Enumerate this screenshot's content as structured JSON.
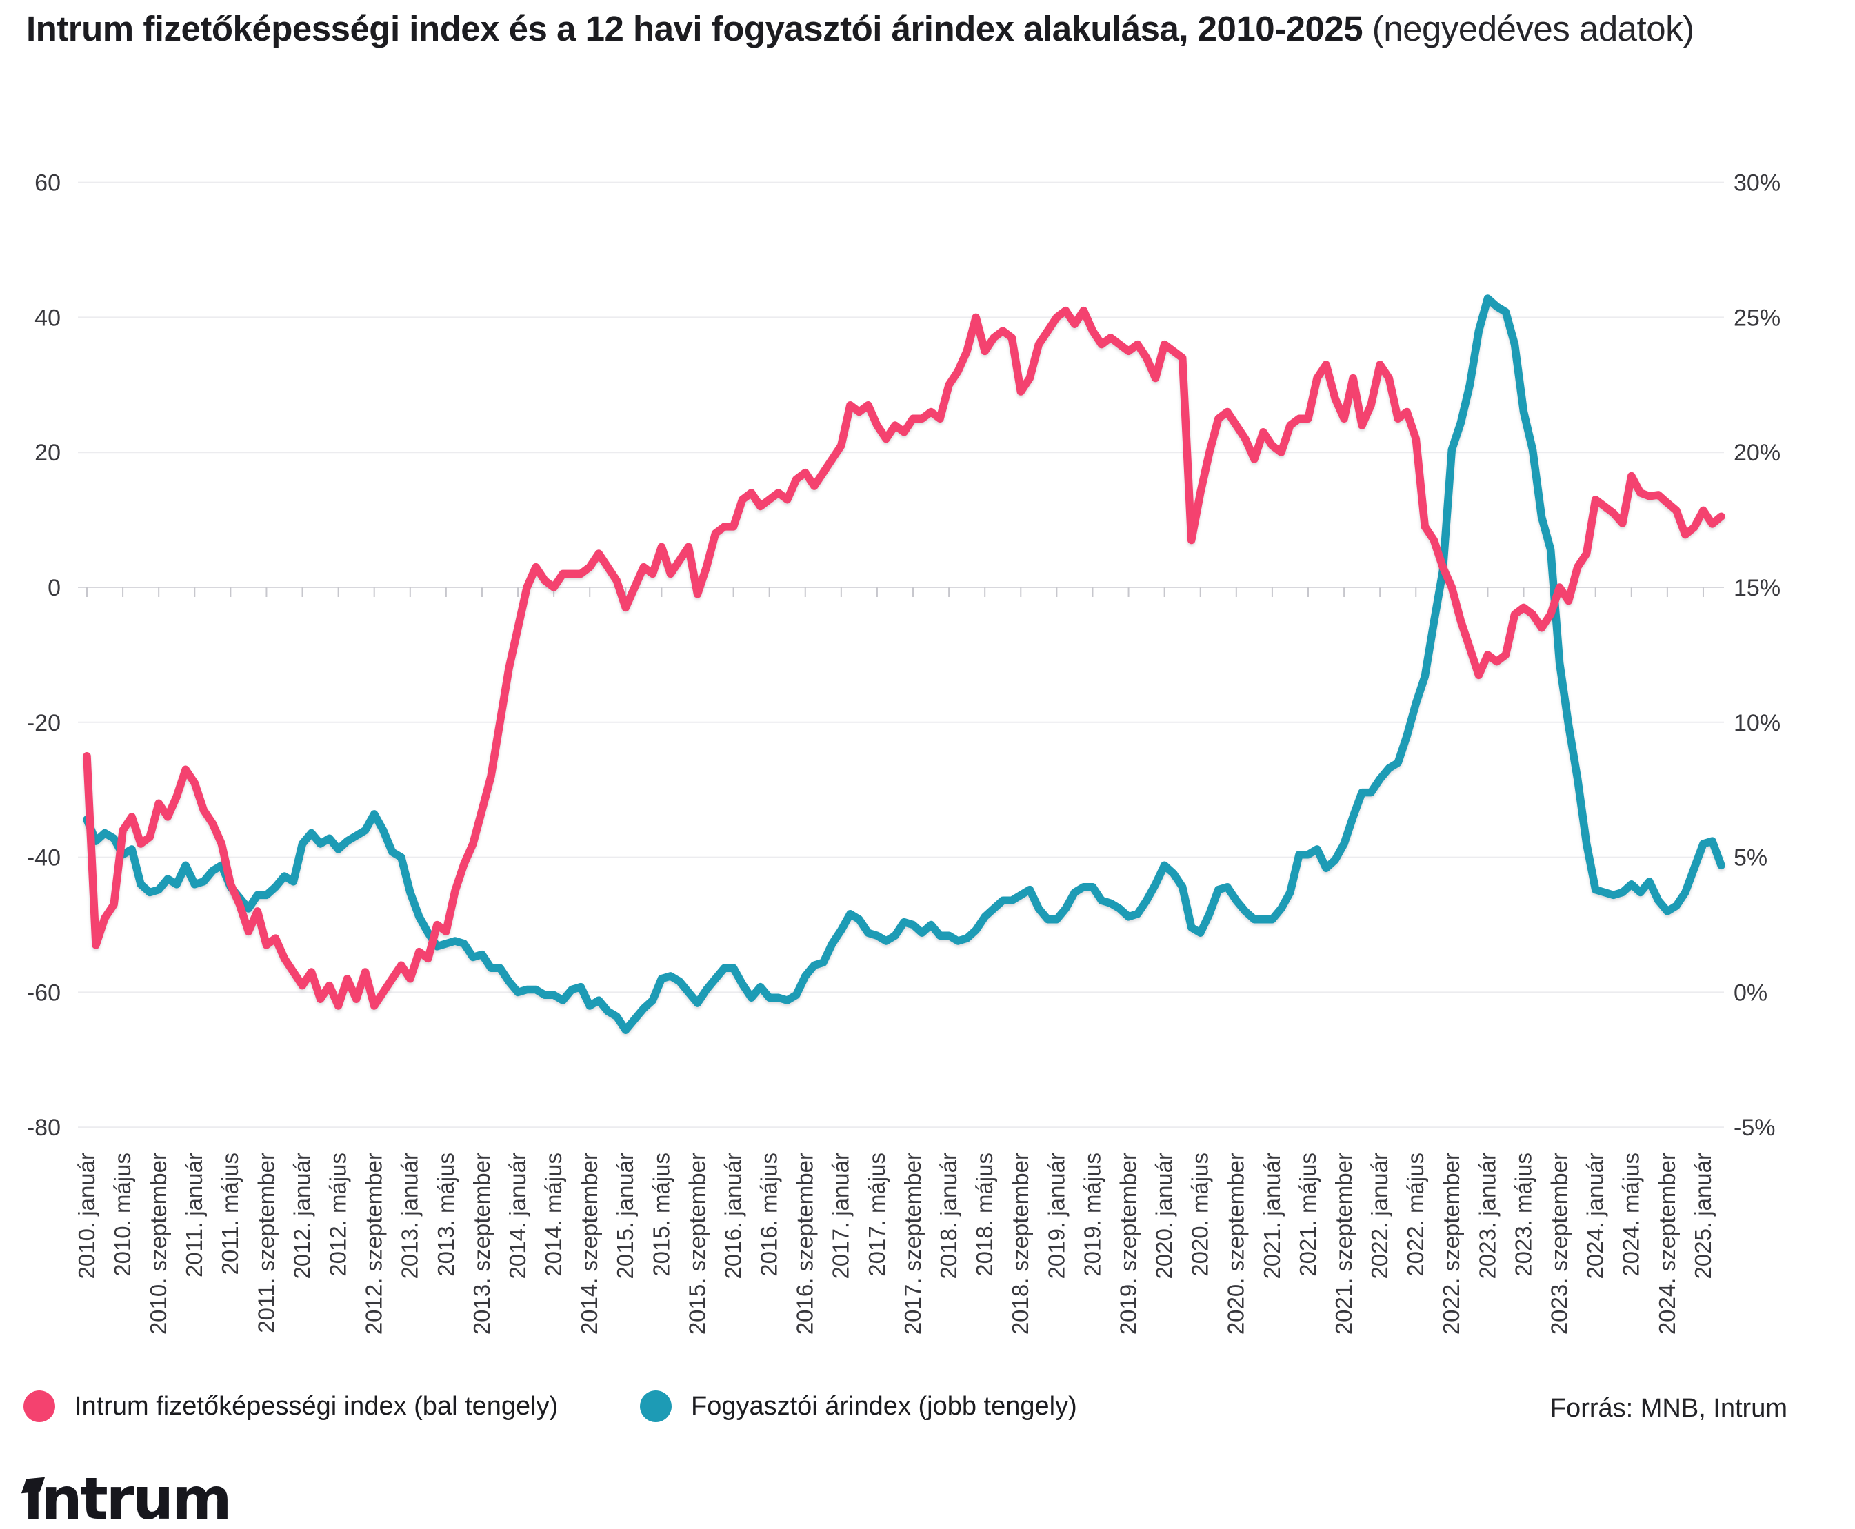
{
  "title": {
    "main": "Intrum fizetőképességi index és a 12 havi fogyasztói árindex alakulása, 2010-2025",
    "sub": "(negyedéves adatok)"
  },
  "source": "Forrás: MNB, Intrum",
  "logo": {
    "text": "intrum"
  },
  "colors": {
    "pink": "#f4426f",
    "teal": "#1d9bb5",
    "grid": "#ececef",
    "zero_axis": "#d7d7dc"
  },
  "legend": [
    {
      "label": "Intrum fizetőképességi index (bal tengely)",
      "color": "#f4426f"
    },
    {
      "label": "Fogyasztói árindex (jobb tengely)",
      "color": "#1d9bb5"
    }
  ],
  "chart_data": {
    "type": "line",
    "title": "Intrum fizetőképességi index és a 12 havi fogyasztói árindex alakulása, 2010-2025 (negyedéves adatok)",
    "grid": "horizontal-only",
    "legend_position": "bottom-left",
    "left_axis": {
      "ticks": [
        60,
        40,
        20,
        0,
        -20,
        -40,
        -60,
        -80
      ],
      "range": [
        -80,
        60
      ]
    },
    "right_axis": {
      "tick_labels": [
        "30%",
        "25%",
        "20%",
        "15%",
        "10%",
        "5%",
        "0%",
        "-5%"
      ],
      "range": [
        -5,
        30
      ]
    },
    "x_tick_labels": [
      "2010. január",
      "2010. május",
      "2010. szeptember",
      "2011. január",
      "2011. május",
      "2011. szeptember",
      "2012. január",
      "2012. május",
      "2012. szeptember",
      "2013. január",
      "2013. május",
      "2013. szeptember",
      "2014. január",
      "2014. május",
      "2014. szeptember",
      "2015. január",
      "2015. május",
      "2015. szeptember",
      "2016. január",
      "2016. május",
      "2016. szeptember",
      "2017. január",
      "2017. május",
      "2017. szeptember",
      "2018. január",
      "2018. május",
      "2018. szeptember",
      "2019. január",
      "2019. május",
      "2019. szeptember",
      "2020. január",
      "2020. május",
      "2020. szeptember",
      "2021. január",
      "2021. május",
      "2021. szeptember",
      "2022. január",
      "2022. május",
      "2022. szeptember",
      "2023. január",
      "2023. május",
      "2023. szeptember",
      "2024. január",
      "2024. május",
      "2024. szeptember",
      "2025. január"
    ],
    "x_start": "2010-01",
    "x_frequency": "monthly",
    "series": [
      {
        "name": "Intrum fizetőképességi index (bal tengely)",
        "axis": "left",
        "color": "#f4426f",
        "values": [
          -25,
          -53,
          -49,
          -47,
          -36,
          -34,
          -38,
          -37,
          -32,
          -34,
          -31,
          -27,
          -29,
          -33,
          -35,
          -38,
          -44,
          -47,
          -51,
          -48,
          -53,
          -52,
          -55,
          -57,
          -59,
          -57,
          -61,
          -59,
          -62,
          -58,
          -61,
          -57,
          -62,
          -60,
          -58,
          -56,
          -58,
          -54,
          -55,
          -50,
          -51,
          -45,
          -41,
          -38,
          -33,
          -28,
          -20,
          -12,
          -6,
          0,
          3,
          1,
          0,
          2,
          2,
          2,
          3,
          5,
          3,
          1,
          -3,
          0,
          3,
          2,
          6,
          2,
          4,
          6,
          -1,
          3,
          8,
          9,
          9,
          13,
          14,
          12,
          13,
          14,
          13,
          16,
          17,
          15,
          17,
          19,
          21,
          27,
          26,
          27,
          24,
          22,
          24,
          23,
          25,
          25,
          26,
          25,
          30,
          32,
          35,
          40,
          35,
          37,
          38,
          37,
          29,
          31,
          36,
          38,
          40,
          41,
          39,
          41,
          38,
          36,
          37,
          36,
          35,
          36,
          34,
          31,
          36,
          35,
          34,
          7,
          14,
          20,
          25,
          26,
          24,
          22,
          19,
          23,
          21,
          20,
          24,
          25,
          25,
          31,
          33,
          28,
          25,
          31,
          24,
          27,
          33,
          31,
          25,
          26,
          22,
          9,
          7,
          3,
          0,
          -5,
          -9,
          -13,
          -10,
          -11,
          -10,
          -4,
          -3,
          -4,
          -6,
          -4,
          0,
          -2,
          3,
          5,
          13,
          12,
          11,
          9.5,
          16.5,
          14,
          13.5,
          13.7,
          12.5,
          11.4,
          7.8,
          8.9,
          11.4,
          9.4,
          10.5
        ]
      },
      {
        "name": "Fogyasztói árindex (jobb tengely)",
        "axis": "right",
        "unit": "%",
        "color": "#1d9bb5",
        "values": [
          6.4,
          5.6,
          5.9,
          5.7,
          5.1,
          5.3,
          4.0,
          3.7,
          3.8,
          4.2,
          4.0,
          4.7,
          4.0,
          4.1,
          4.5,
          4.7,
          3.9,
          3.5,
          3.1,
          3.6,
          3.6,
          3.9,
          4.3,
          4.1,
          5.5,
          5.9,
          5.5,
          5.7,
          5.3,
          5.6,
          5.8,
          6.0,
          6.6,
          6.0,
          5.2,
          5.0,
          3.7,
          2.8,
          2.2,
          1.7,
          1.8,
          1.9,
          1.8,
          1.3,
          1.4,
          0.9,
          0.9,
          0.4,
          0.0,
          0.1,
          0.1,
          -0.1,
          -0.1,
          -0.3,
          0.1,
          0.2,
          -0.5,
          -0.3,
          -0.7,
          -0.9,
          -1.4,
          -1.0,
          -0.6,
          -0.3,
          0.5,
          0.6,
          0.4,
          0.0,
          -0.4,
          0.1,
          0.5,
          0.9,
          0.9,
          0.3,
          -0.2,
          0.2,
          -0.2,
          -0.2,
          -0.3,
          -0.1,
          0.6,
          1.0,
          1.1,
          1.8,
          2.3,
          2.9,
          2.7,
          2.2,
          2.1,
          1.9,
          2.1,
          2.6,
          2.5,
          2.2,
          2.5,
          2.1,
          2.1,
          1.9,
          2.0,
          2.3,
          2.8,
          3.1,
          3.4,
          3.4,
          3.6,
          3.8,
          3.1,
          2.7,
          2.7,
          3.1,
          3.7,
          3.9,
          3.9,
          3.4,
          3.3,
          3.1,
          2.8,
          2.9,
          3.4,
          4.0,
          4.7,
          4.4,
          3.9,
          2.4,
          2.2,
          2.9,
          3.8,
          3.9,
          3.4,
          3.0,
          2.7,
          2.7,
          2.7,
          3.1,
          3.7,
          5.1,
          5.1,
          5.3,
          4.6,
          4.9,
          5.5,
          6.5,
          7.4,
          7.4,
          7.9,
          8.3,
          8.5,
          9.5,
          10.7,
          11.7,
          13.7,
          15.6,
          20.1,
          21.1,
          22.5,
          24.5,
          25.7,
          25.4,
          25.2,
          24.0,
          21.5,
          20.1,
          17.6,
          16.4,
          12.2,
          9.9,
          7.9,
          5.5,
          3.8,
          3.7,
          3.6,
          3.7,
          4.0,
          3.7,
          4.1,
          3.4,
          3.0,
          3.2,
          3.7,
          4.6,
          5.5,
          5.6,
          4.7
        ]
      }
    ]
  }
}
